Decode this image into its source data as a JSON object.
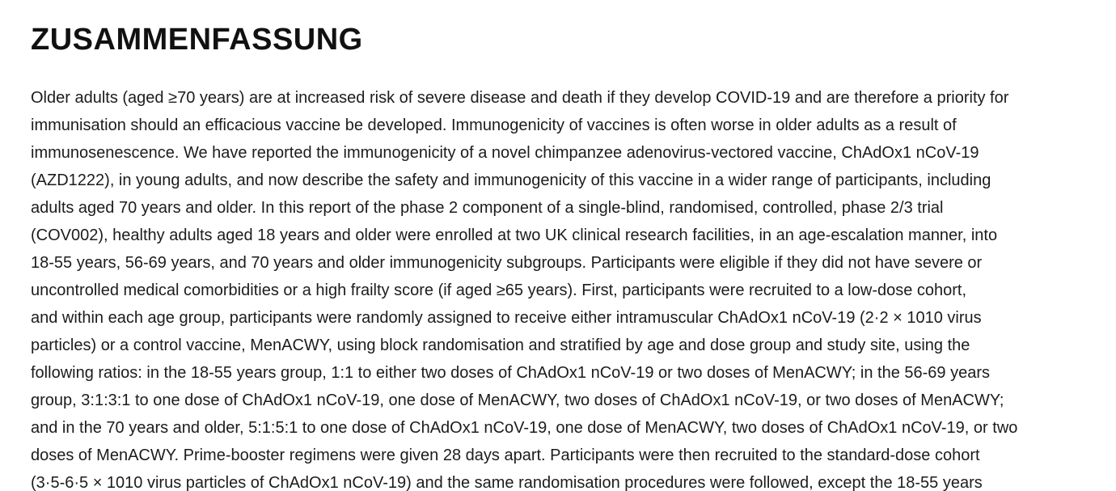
{
  "document": {
    "title": "ZUSAMMENFASSUNG",
    "colors": {
      "background": "#ffffff",
      "title_text": "#111111",
      "body_text": "#1c1c1c"
    },
    "abstract_lines": [
      "Older adults (aged ≥70 years) are at increased risk of severe disease and death if they develop COVID-19 and are therefore a priority for",
      "immunisation should an efficacious vaccine be developed. Immunogenicity of vaccines is often worse in older adults as a result of",
      "immunosenescence. We have reported the immunogenicity of a novel chimpanzee adenovirus-vectored vaccine, ChAdOx1 nCoV-19",
      "(AZD1222), in young adults, and now describe the safety and immunogenicity of this vaccine in a wider range of participants, including",
      "adults aged 70 years and older. In this report of the phase 2 component of a single-blind, randomised, controlled, phase 2/3 trial",
      "(COV002), healthy adults aged 18 years and older were enrolled at two UK clinical research facilities, in an age-escalation manner, into",
      "18-55 years, 56-69 years, and 70 years and older immunogenicity subgroups. Participants were eligible if they did not have severe or",
      "uncontrolled medical comorbidities or a high frailty score (if aged ≥65 years). First, participants were recruited to a low-dose cohort,",
      "and within each age group, participants were randomly assigned to receive either intramuscular ChAdOx1 nCoV-19 (2·2 × 1010 virus",
      "particles) or a control vaccine, MenACWY, using block randomisation and stratified by age and dose group and study site, using the",
      "following ratios: in the 18-55 years group, 1:1 to either two doses of ChAdOx1 nCoV-19 or two doses of MenACWY; in the 56-69 years",
      "group, 3:1:3:1 to one dose of ChAdOx1 nCoV-19, one dose of MenACWY, two doses of ChAdOx1 nCoV-19, or two doses of MenACWY;",
      "and in the 70 years and older, 5:1:5:1 to one dose of ChAdOx1 nCoV-19, one dose of MenACWY, two doses of ChAdOx1 nCoV-19, or two",
      "doses of MenACWY. Prime-booster regimens were given 28 days apart. Participants were then recruited to the standard-dose cohort",
      "(3·5-6·5 × 1010 virus particles of ChAdOx1 nCoV-19) and the same randomisation procedures were followed, except the 18-55 years"
    ]
  }
}
